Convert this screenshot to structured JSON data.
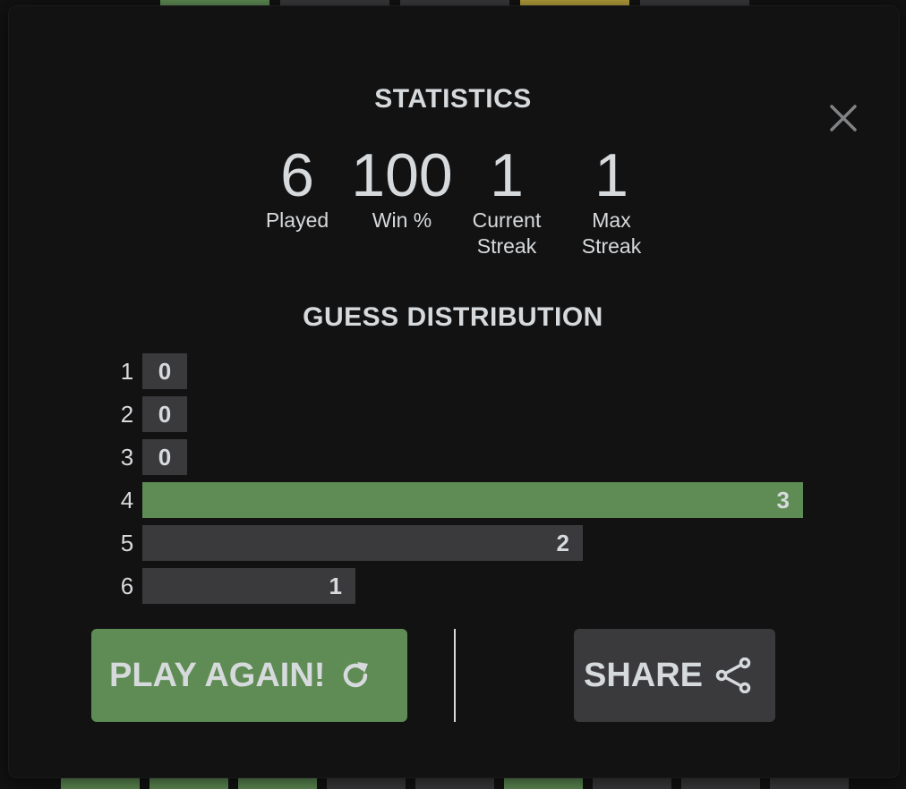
{
  "stats_title": "STATISTICS",
  "stats": [
    {
      "value": "6",
      "label_lines": [
        "Played"
      ]
    },
    {
      "value": "100",
      "label_lines": [
        "Win %"
      ]
    },
    {
      "value": "1",
      "label_lines": [
        "Current",
        "Streak"
      ]
    },
    {
      "value": "1",
      "label_lines": [
        "Max",
        "Streak"
      ]
    }
  ],
  "distribution_title": "GUESS DISTRIBUTION",
  "distribution": [
    {
      "guess": "1",
      "count": 0,
      "label": "0",
      "highlight": false
    },
    {
      "guess": "2",
      "count": 0,
      "label": "0",
      "highlight": false
    },
    {
      "guess": "3",
      "count": 0,
      "label": "0",
      "highlight": false
    },
    {
      "guess": "4",
      "count": 3,
      "label": "3",
      "highlight": true
    },
    {
      "guess": "5",
      "count": 2,
      "label": "2",
      "highlight": false
    },
    {
      "guess": "6",
      "count": 1,
      "label": "1",
      "highlight": false
    }
  ],
  "buttons": {
    "play_again": "PLAY AGAIN!",
    "play_again_icon": "refresh-icon",
    "share": "SHARE",
    "share_icon": "share-icon"
  },
  "close_icon": "close-icon",
  "colors": {
    "correct": "#5e8c54",
    "absent": "#3a3a3c",
    "present": "#b59f3b",
    "background": "#121213",
    "text": "#d7dadc"
  }
}
